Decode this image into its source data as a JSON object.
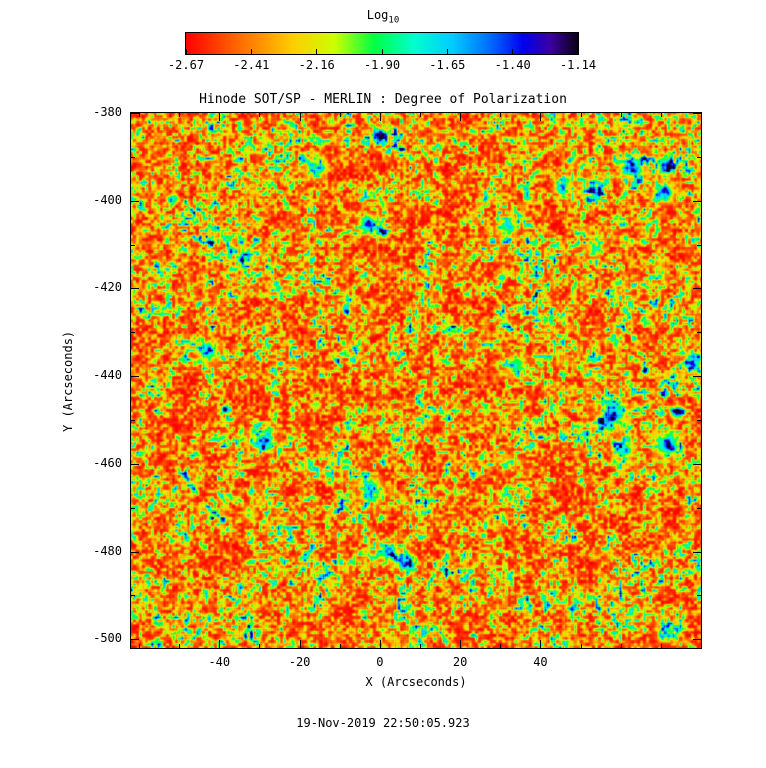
{
  "page": {
    "background_color": "#ffffff",
    "axis_color": "#000000",
    "text_color": "#000000"
  },
  "colorbar": {
    "label": "Log",
    "label_sub": "10",
    "tick_labels": [
      "-2.67",
      "-2.41",
      "-2.16",
      "-1.90",
      "-1.65",
      "-1.40",
      "-1.14"
    ]
  },
  "chart_data": {
    "type": "heatmap",
    "title": "Hinode SOT/SP - MERLIN : Degree of Polarization",
    "xlabel": "X (Arcseconds)",
    "ylabel": "Y (Arcseconds)",
    "x_range": [
      -62,
      80
    ],
    "y_range": [
      -380,
      -502
    ],
    "x_ticks": [
      -40,
      -20,
      0,
      20,
      40
    ],
    "y_ticks": [
      -380,
      -400,
      -420,
      -440,
      -460,
      -480,
      -500
    ],
    "colorbar": {
      "label": "Log10",
      "min": -2.67,
      "max": -1.14,
      "tick_values": [
        -2.67,
        -2.41,
        -2.16,
        -1.9,
        -1.65,
        -1.4,
        -1.14
      ],
      "tick_labels": [
        "-2.67",
        "-2.41",
        "-2.16",
        "-1.90",
        "-1.65",
        "-1.40",
        "-1.14"
      ]
    },
    "colormap": [
      {
        "pos": 0.0,
        "color": "#ff0000"
      },
      {
        "pos": 0.13,
        "color": "#ff6600"
      },
      {
        "pos": 0.27,
        "color": "#ffcc00"
      },
      {
        "pos": 0.38,
        "color": "#ccff00"
      },
      {
        "pos": 0.48,
        "color": "#00ff44"
      },
      {
        "pos": 0.58,
        "color": "#00ffcc"
      },
      {
        "pos": 0.68,
        "color": "#00ccff"
      },
      {
        "pos": 0.78,
        "color": "#0066ff"
      },
      {
        "pos": 0.86,
        "color": "#0000ee"
      },
      {
        "pos": 0.93,
        "color": "#3c00a0"
      },
      {
        "pos": 1.0,
        "color": "#0a0014"
      }
    ],
    "value_description": "Log10 degree of polarization map; background mostly near -2.67 (red) with granular mottling near -2.3 to -2.1 (orange/yellow/green network) and sparse strong-field patches reaching -1.6 to -1.14 (cyan, blue, black blobs)"
  },
  "footer": {
    "timestamp": "19-Nov-2019 22:50:05.923"
  }
}
